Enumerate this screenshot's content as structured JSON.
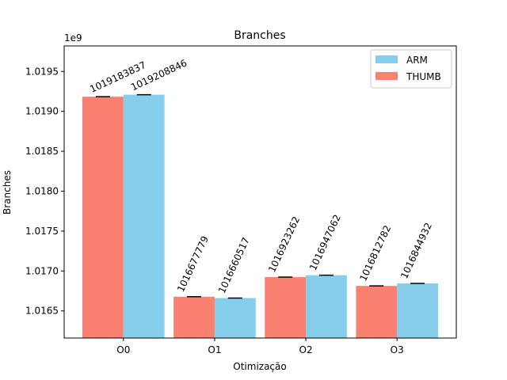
{
  "chart_data": {
    "type": "bar",
    "title": "Branches",
    "xlabel": "Otimização",
    "ylabel": "Branches",
    "offset_label": "1e9",
    "categories": [
      "O0",
      "O1",
      "O2",
      "O3"
    ],
    "series": [
      {
        "name": "THUMB",
        "color": "#fa8072",
        "values": [
          1019183837,
          1016677779,
          1016923262,
          1016812782
        ]
      },
      {
        "name": "ARM",
        "color": "#87ceeb",
        "values": [
          1019208846,
          1016660517,
          1016947062,
          1016844932
        ]
      }
    ],
    "ylim": [
      1016160000.0,
      1019820000.0
    ],
    "yticks": [
      1016500000.0,
      1017000000.0,
      1017500000.0,
      1018000000.0,
      1018500000.0,
      1019000000.0,
      1019500000.0
    ],
    "ytick_labels": [
      "1.0165",
      "1.0170",
      "1.0175",
      "1.0180",
      "1.0185",
      "1.0190",
      "1.0195"
    ],
    "legend": {
      "position": "top-right",
      "entries": [
        "ARM",
        "THUMB"
      ]
    },
    "grid": false
  }
}
